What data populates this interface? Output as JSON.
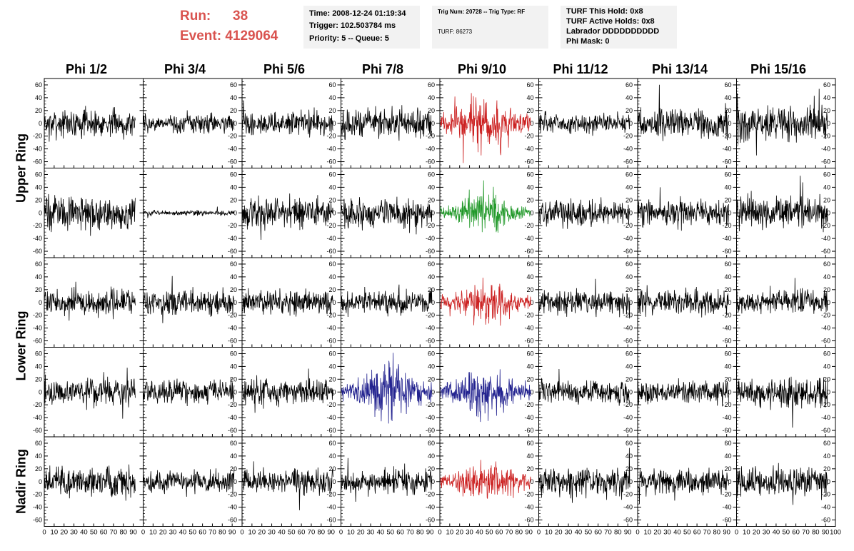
{
  "header": {
    "run_label": "Run:",
    "run_value": "38",
    "event_label": "Event:",
    "event_value": "4129064"
  },
  "info_boxes": {
    "time_box": {
      "time": "Time: 2008-12-24 01:19:34",
      "trigger": "Trigger: 102.503784 ms",
      "priority": "Priority: 5 -- Queue: 5"
    },
    "trig_box": {
      "trig": "Trig Num: 20728 -- Trig Type: RF",
      "turf": "TURF: 86273"
    },
    "turf_box": {
      "hold": "TURF This Hold: 0x8",
      "active": "TURF Active Holds: 0x8",
      "labrador": "Labrador DDDDDDDDDD",
      "phimask": "Phi Mask: 0"
    }
  },
  "colors": {
    "title_red": "#d9534f",
    "trace_black": "#000000",
    "trace_red": "#cc2222",
    "trace_green": "#22992a",
    "trace_blue": "#22228f"
  },
  "chart_data": {
    "type": "line",
    "columns": [
      "Phi 1/2",
      "Phi 3/4",
      "Phi 5/6",
      "Phi 7/8",
      "Phi 9/10",
      "Phi 11/12",
      "Phi 13/14",
      "Phi 15/16"
    ],
    "rows": [
      "Upper Ring",
      "Lower Ring",
      "Nadir Ring"
    ],
    "row_groups": [
      {
        "label": "Upper Ring",
        "panels": 2
      },
      {
        "label": "Lower Ring",
        "panels": 2
      },
      {
        "label": "Nadir Ring",
        "panels": 1
      }
    ],
    "xlim": [
      0,
      100
    ],
    "ylim": [
      -70,
      70
    ],
    "x_ticks": [
      0,
      10,
      20,
      30,
      40,
      50,
      60,
      70,
      80,
      90,
      100
    ],
    "y_ticks": [
      -60,
      -40,
      -20,
      0,
      20,
      40,
      60
    ],
    "x_tick_labels": [
      "0",
      "10",
      "20",
      "30",
      "40",
      "50",
      "60",
      "70",
      "80",
      "90",
      "100"
    ],
    "y_tick_labels": [
      "-60",
      "-40",
      "-20",
      "0",
      "20",
      "40",
      "60"
    ],
    "sample_range": [
      0,
      92
    ],
    "panels": [
      [
        {
          "amp": 13,
          "color": "black"
        },
        {
          "amp": 9,
          "color": "black"
        },
        {
          "amp": 11,
          "color": "black"
        },
        {
          "amp": 14,
          "color": "black"
        },
        {
          "amp": 22,
          "color": "red",
          "burst": true
        },
        {
          "amp": 10,
          "color": "black"
        },
        {
          "amp": 14,
          "color": "black"
        },
        {
          "amp": 17,
          "color": "black"
        }
      ],
      [
        {
          "amp": 15,
          "color": "black"
        },
        {
          "amp": 2.5,
          "color": "black"
        },
        {
          "amp": 14,
          "color": "black"
        },
        {
          "amp": 14,
          "color": "black"
        },
        {
          "amp": 13,
          "color": "green",
          "burst": true
        },
        {
          "amp": 12,
          "color": "black"
        },
        {
          "amp": 12,
          "color": "black"
        },
        {
          "amp": 15,
          "color": "black"
        }
      ],
      [
        {
          "amp": 13,
          "color": "black"
        },
        {
          "amp": 12,
          "color": "black"
        },
        {
          "amp": 11,
          "color": "black"
        },
        {
          "amp": 11,
          "color": "black"
        },
        {
          "amp": 16,
          "color": "red",
          "burst": true
        },
        {
          "amp": 11,
          "color": "black"
        },
        {
          "amp": 12,
          "color": "black"
        },
        {
          "amp": 11,
          "color": "black"
        }
      ],
      [
        {
          "amp": 13,
          "color": "black"
        },
        {
          "amp": 11,
          "color": "black"
        },
        {
          "amp": 12,
          "color": "black"
        },
        {
          "amp": 19,
          "color": "blue",
          "burst": true
        },
        {
          "amp": 17,
          "color": "blue",
          "burst": true
        },
        {
          "amp": 11,
          "color": "black"
        },
        {
          "amp": 10,
          "color": "black"
        },
        {
          "amp": 14,
          "color": "black"
        }
      ],
      [
        {
          "amp": 14,
          "color": "black"
        },
        {
          "amp": 10,
          "color": "black"
        },
        {
          "amp": 11,
          "color": "black"
        },
        {
          "amp": 12,
          "color": "black"
        },
        {
          "amp": 14,
          "color": "red",
          "burst": true
        },
        {
          "amp": 15,
          "color": "black"
        },
        {
          "amp": 12,
          "color": "black"
        },
        {
          "amp": 14,
          "color": "black"
        }
      ]
    ]
  }
}
